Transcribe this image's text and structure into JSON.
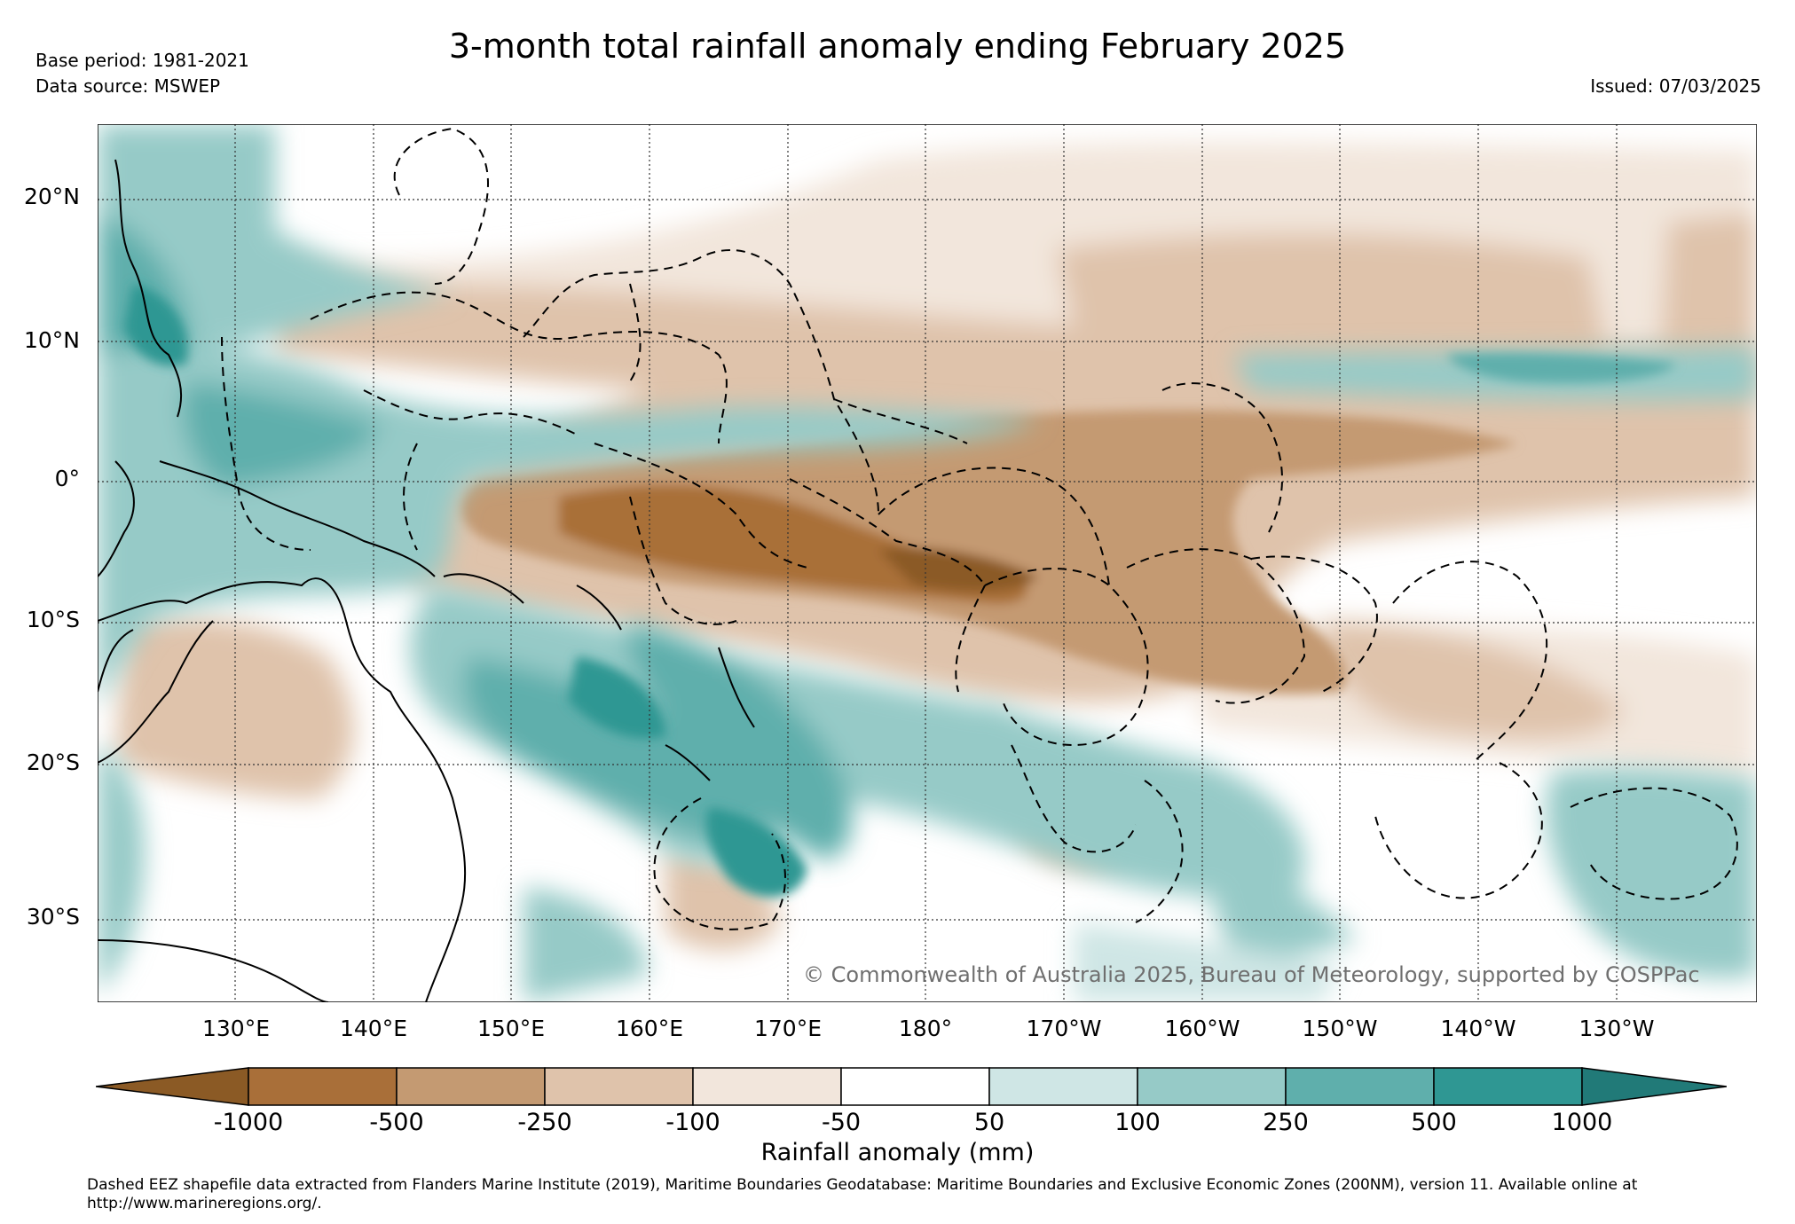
{
  "header": {
    "title": "3-month total rainfall anomaly ending February 2025",
    "base_period": "Base period: 1981-2021",
    "data_source": "Data source: MSWEP",
    "issued": "Issued: 07/03/2025"
  },
  "map": {
    "latitude_labels": [
      "20°N",
      "10°N",
      "0°",
      "10°S",
      "20°S",
      "30°S"
    ],
    "longitude_labels": [
      "130°E",
      "140°E",
      "150°E",
      "160°E",
      "170°E",
      "180°",
      "170°W",
      "160°W",
      "150°W",
      "140°W",
      "130°W"
    ],
    "credit": "© Commonwealth of Australia 2025, Bureau of Meteorology, supported by COSPPac",
    "anomaly_pattern": {
      "dry_core_region": "central equatorial Pacific, 0°–10°S, 150°E–150°W",
      "wet_regions": [
        "Maritime Continent",
        "Coral Sea / Vanuatu / New Caledonia",
        "Southwest Pacific 15°S–30°S",
        "north equatorial band near 5°N"
      ]
    }
  },
  "colorbar": {
    "label": "Rainfall anomaly (mm)",
    "ticks": [
      "-1000",
      "-500",
      "-250",
      "-100",
      "-50",
      "50",
      "100",
      "250",
      "500",
      "1000"
    ],
    "colors": {
      "below_-1000": "#8b5a25",
      "-1000_to_-500": "#a96f39",
      "-500_to_-250": "#c49a72",
      "-250_to_-100": "#dfc3ab",
      "-100_to_-50": "#f2e6dc",
      "-50_to_50": "#ffffff",
      "50_to_100": "#cfe6e5",
      "100_to_250": "#96cac7",
      "250_to_500": "#5fafac",
      "500_to_1000": "#2f9793",
      "above_1000": "#217a78"
    }
  },
  "footer": {
    "text": "Dashed EEZ shapefile data extracted from Flanders Marine Institute (2019), Maritime Boundaries Geodatabase: Maritime Boundaries and Exclusive Economic Zones (200NM), version 11. Available online at http://www.marineregions.org/."
  }
}
